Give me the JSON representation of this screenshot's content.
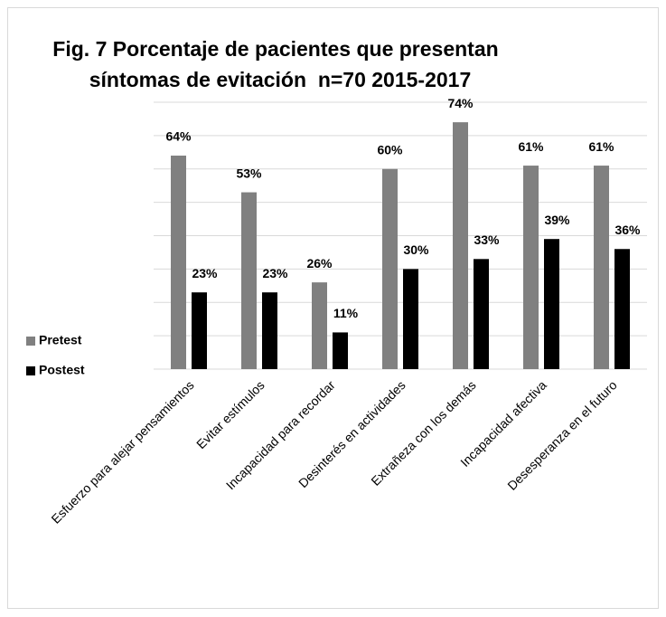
{
  "chart_data": {
    "type": "bar",
    "title": [
      "Fig. 7 Porcentaje de pacientes que presentan",
      "síntomas de evitación  n=70 2015-2017"
    ],
    "categories": [
      "Esfuerzo para alejar pensamientos",
      "Evitar estímulos",
      "Incapacidad para recordar",
      "Desinterés en actividades",
      "Extrañeza con los demás",
      "Incapacidad afectiva",
      "Desesperanza en el futuro"
    ],
    "series": [
      {
        "name": "Pretest",
        "color": "#808080",
        "values": [
          64,
          53,
          26,
          60,
          74,
          61,
          61
        ],
        "value_labels": [
          "64%",
          "53%",
          "26%",
          "60%",
          "74%",
          "61%",
          "61%"
        ]
      },
      {
        "name": "Postest",
        "color": "#000000",
        "values": [
          23,
          23,
          11,
          30,
          33,
          39,
          36
        ],
        "value_labels": [
          "23%",
          "23%",
          "11%",
          "30%",
          "33%",
          "39%",
          "36%"
        ]
      }
    ],
    "ylim": [
      0,
      80
    ],
    "yticks": [
      0,
      10,
      20,
      30,
      40,
      50,
      60,
      70,
      80
    ],
    "grid": true,
    "legend": "left"
  }
}
